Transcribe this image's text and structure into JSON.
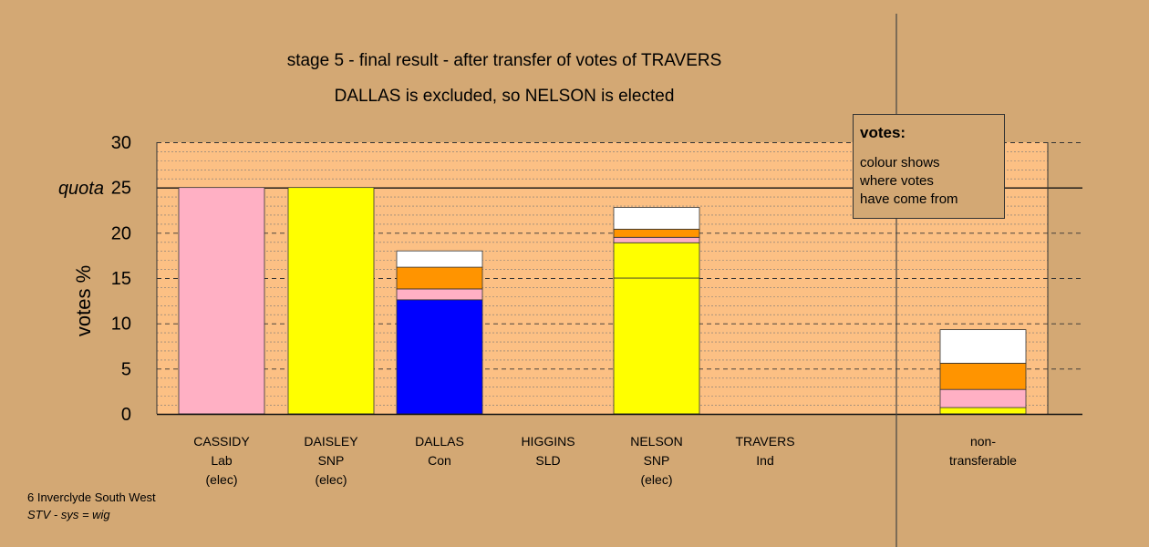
{
  "chart_data": {
    "type": "bar",
    "stacked": true,
    "title": "stage 5 - final result - after transfer of votes of TRAVERS",
    "subtitle": "DALLAS is excluded, so NELSON is elected",
    "ylabel": "votes %",
    "ylim": [
      0,
      30
    ],
    "yticks": [
      "0",
      "5",
      "10",
      "15",
      "20",
      "25",
      "30"
    ],
    "quota": 25,
    "quota_label": "quota",
    "grid": true,
    "categories": [
      {
        "name": "CASSIDY",
        "party": "Lab",
        "status": "(elec)"
      },
      {
        "name": "DAISLEY",
        "party": "SNP",
        "status": "(elec)"
      },
      {
        "name": "DALLAS",
        "party": "Con",
        "status": ""
      },
      {
        "name": "HIGGINS",
        "party": "SLD",
        "status": ""
      },
      {
        "name": "NELSON",
        "party": "SNP",
        "status": "(elec)"
      },
      {
        "name": "TRAVERS",
        "party": "Ind",
        "status": ""
      },
      {
        "name": "non-",
        "party": "transferable",
        "status": ""
      }
    ],
    "bars": [
      {
        "segments": [
          {
            "value": 25.0,
            "color": "#ffb0c4"
          }
        ]
      },
      {
        "segments": [
          {
            "value": 25.0,
            "color": "#ffff00"
          }
        ]
      },
      {
        "segments": [
          {
            "value": 12.6,
            "color": "#0000ff"
          },
          {
            "value": 1.2,
            "color": "#ffb0c4"
          },
          {
            "value": 2.4,
            "color": "#ff9400"
          },
          {
            "value": 1.8,
            "color": "#ffffff"
          }
        ]
      },
      {
        "segments": []
      },
      {
        "segments": [
          {
            "value": 15.0,
            "color": "#ffff00"
          },
          {
            "value": 3.9,
            "color": "#ffff00"
          },
          {
            "value": 0.6,
            "color": "#ffb0c4"
          },
          {
            "value": 0.9,
            "color": "#ff9400"
          },
          {
            "value": 2.4,
            "color": "#ffffff"
          }
        ]
      },
      {
        "segments": []
      },
      {
        "segments": [
          {
            "value": 0.7,
            "color": "#ffff00"
          },
          {
            "value": 2.0,
            "color": "#ffb0c4"
          },
          {
            "value": 2.9,
            "color": "#ff9400"
          },
          {
            "value": 3.7,
            "color": "#ffffff"
          }
        ]
      }
    ]
  },
  "legend": {
    "title": "votes:",
    "lines": [
      "colour shows",
      "where votes",
      "have come from"
    ]
  },
  "footer": {
    "line1": "6 Inverclyde South West",
    "line2": "STV - sys = wig"
  },
  "colors": {
    "background": "#d3a874",
    "plot_area": "#fcc084"
  }
}
